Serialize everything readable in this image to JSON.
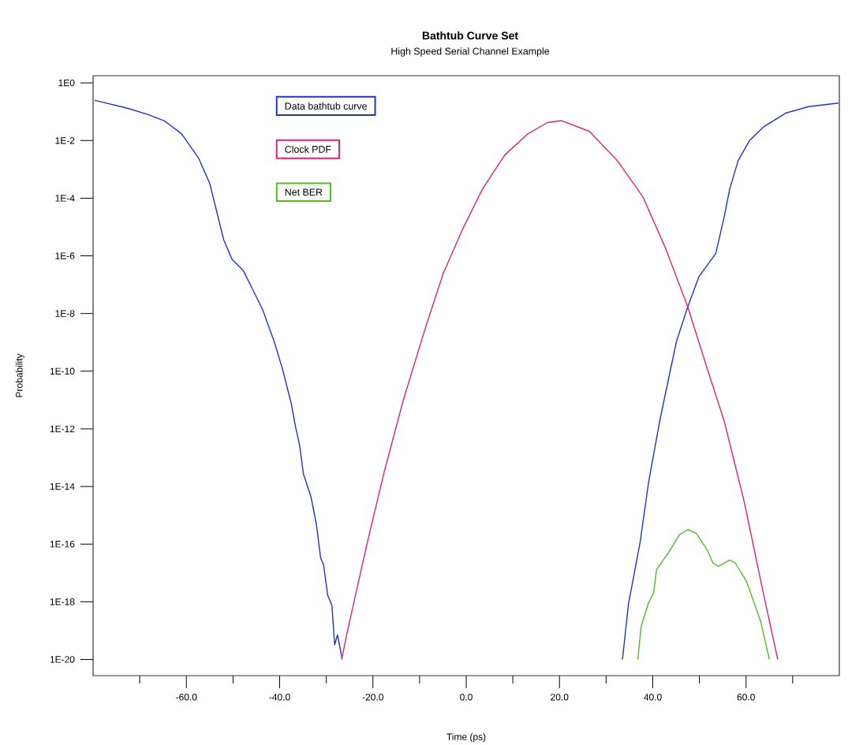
{
  "chart_data": {
    "type": "line",
    "title": "Bathtub Curve Set",
    "subtitle": "High Speed Serial Channel Example",
    "xlabel": "Time (ps)",
    "ylabel": "Probability",
    "log": "y",
    "legend": "top left",
    "marker": "none",
    "line_style": "solid",
    "xlim": [
      -80,
      80
    ],
    "ylim": [
      2.75e-21,
      1.78
    ],
    "xticks": [
      {
        "value": -70,
        "label": null
      },
      {
        "value": -60,
        "label": "-60.0"
      },
      {
        "value": -50,
        "label": null
      },
      {
        "value": -40,
        "label": "-40.0"
      },
      {
        "value": -30,
        "label": null
      },
      {
        "value": -20,
        "label": "-20.0"
      },
      {
        "value": -10,
        "label": null
      },
      {
        "value": 0,
        "label": "0.0"
      },
      {
        "value": 10,
        "label": null
      },
      {
        "value": 20,
        "label": "20.0"
      },
      {
        "value": 30,
        "label": null
      },
      {
        "value": 40,
        "label": "40.0"
      },
      {
        "value": 50,
        "label": null
      },
      {
        "value": 60,
        "label": "60.0"
      },
      {
        "value": 70,
        "label": null
      }
    ],
    "yticks": [
      {
        "value": 1,
        "label": "1E0"
      },
      {
        "value": 0.01,
        "label": "1E-2"
      },
      {
        "value": 0.0001,
        "label": "1E-4"
      },
      {
        "value": 1e-06,
        "label": "1E-6"
      },
      {
        "value": 1e-08,
        "label": "1E-8"
      },
      {
        "value": 1e-10,
        "label": "1E-10"
      },
      {
        "value": 1e-12,
        "label": "1E-12"
      },
      {
        "value": 1e-14,
        "label": "1E-14"
      },
      {
        "value": 1e-16,
        "label": "1E-16"
      },
      {
        "value": 1e-18,
        "label": "1E-18"
      },
      {
        "value": 1e-20,
        "label": "1E-20"
      }
    ],
    "series": [
      {
        "name": "Data bathtub curve",
        "color": "#2233cc",
        "x": [
          -79.7,
          -72.5,
          -68.3,
          -64.6,
          -61.0,
          -57.4,
          -55.0,
          -53.2,
          -52.0,
          -50.2,
          -47.8,
          -45.4,
          -43.6,
          -41.2,
          -39.4,
          -37.5,
          -36.6,
          -35.7,
          -34.9,
          -33.3,
          -32.1,
          -31.2,
          -30.6,
          -29.7,
          -28.8,
          -28.2,
          -27.6,
          -27.0,
          -26.6,
          0,
          33.5,
          34.8,
          37.3,
          39.1,
          41.5,
          43.4,
          45.1,
          47.5,
          49.9,
          53.5,
          55.3,
          56.5,
          58.3,
          60.7,
          63.8,
          68.6,
          73.4,
          79.8
        ],
        "values": [
          0.25,
          0.13,
          0.081,
          0.047,
          0.017,
          0.0025,
          0.00033,
          2.2e-05,
          3.6e-06,
          7.6e-07,
          3.1e-07,
          5.1e-08,
          1.3e-08,
          1.1e-09,
          1.2e-10,
          7.4e-12,
          1.2e-12,
          2.6e-13,
          2.7e-14,
          4.5e-15,
          4.7e-16,
          3.2e-17,
          2e-17,
          1.7e-18,
          7.6e-19,
          3.2e-20,
          7.2e-20,
          2.3e-20,
          1e-20,
          null,
          1e-20,
          8.5e-19,
          1.2e-16,
          1.4e-14,
          1.9e-12,
          5.6e-11,
          1.1e-09,
          1.7e-08,
          1.9e-07,
          1.2e-06,
          2.2e-05,
          0.00021,
          0.002,
          0.0098,
          0.03,
          0.091,
          0.15,
          0.2
        ]
      },
      {
        "name": "Clock PDF",
        "color": "#dd2277",
        "x": [
          -26.7,
          -25.5,
          -21.3,
          -17.7,
          -13.5,
          -8.5,
          -4.9,
          -0.7,
          3.5,
          8.3,
          13.2,
          17.4,
          20.4,
          26.4,
          32.4,
          37.9,
          42.7,
          47.5,
          51.7,
          55.3,
          59.5,
          63.8,
          66.8
        ],
        "values": [
          1e-20,
          9.1e-20,
          9.8e-17,
          2.7e-14,
          9.8e-12,
          4.3e-09,
          2.5e-07,
          8.9e-06,
          0.00021,
          0.0032,
          0.017,
          0.042,
          0.049,
          0.021,
          0.002,
          0.00011,
          1.9e-06,
          1.7e-08,
          1.2e-10,
          1.9e-12,
          3.5e-15,
          1.7e-18,
          1e-20
        ]
      },
      {
        "name": "Net BER",
        "color": "#55bb22",
        "x": [
          36.8,
          37.5,
          39.0,
          40.2,
          40.8,
          43.3,
          45.7,
          47.5,
          49.3,
          51.7,
          52.9,
          54.1,
          56.5,
          57.7,
          60.1,
          63.1,
          65.0
        ],
        "values": [
          1e-20,
          1.4e-19,
          8.5e-19,
          2.1e-18,
          1.3e-17,
          4.9e-17,
          2.1e-16,
          3.2e-16,
          2.4e-16,
          6.2e-17,
          2.2e-17,
          1.7e-17,
          2.8e-17,
          2.2e-17,
          5.1e-18,
          2.2e-19,
          1e-20
        ]
      }
    ]
  }
}
